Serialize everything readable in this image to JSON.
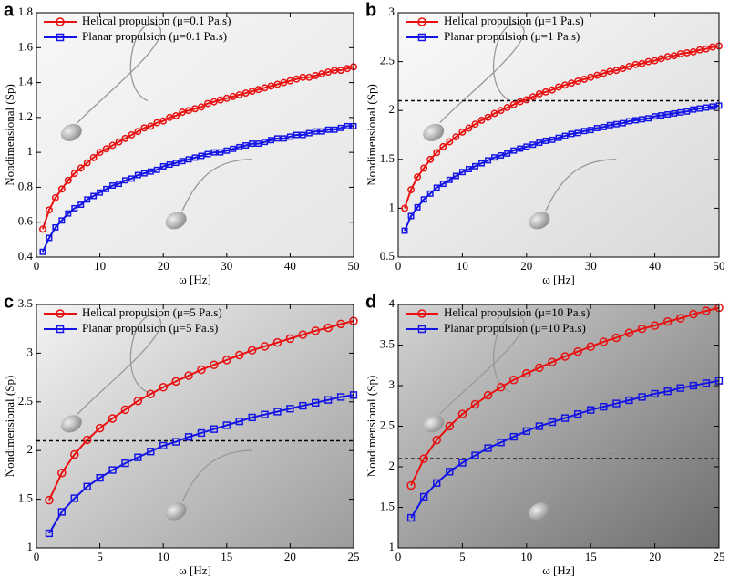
{
  "chart_data": [
    {
      "type": "line",
      "label": "a",
      "x_label": "ω [Hz]",
      "y_label": "Nondimensional (Sp)",
      "x": [
        1,
        2,
        3,
        4,
        5,
        6,
        7,
        8,
        9,
        10,
        11,
        12,
        13,
        14,
        15,
        16,
        17,
        18,
        19,
        20,
        21,
        22,
        23,
        24,
        25,
        26,
        27,
        28,
        29,
        30,
        31,
        32,
        33,
        34,
        35,
        36,
        37,
        38,
        39,
        40,
        41,
        42,
        43,
        44,
        45,
        46,
        47,
        48,
        49,
        50
      ],
      "xlim": [
        0,
        50
      ],
      "xticks": [
        0,
        10,
        20,
        30,
        40,
        50
      ],
      "ylim": [
        0.4,
        1.8
      ],
      "yticks": [
        0.4,
        0.6,
        0.8,
        1,
        1.2,
        1.4,
        1.6,
        1.8
      ],
      "series": [
        {
          "name": "Helical propulsion (μ=0.1 Pa.s)",
          "color": "#e81010",
          "marker": "circle",
          "values": [
            0.56,
            0.67,
            0.74,
            0.79,
            0.84,
            0.88,
            0.91,
            0.94,
            0.97,
            1.0,
            1.02,
            1.04,
            1.06,
            1.08,
            1.1,
            1.12,
            1.14,
            1.15,
            1.17,
            1.18,
            1.2,
            1.21,
            1.23,
            1.24,
            1.25,
            1.26,
            1.28,
            1.29,
            1.3,
            1.31,
            1.32,
            1.33,
            1.34,
            1.35,
            1.36,
            1.37,
            1.38,
            1.39,
            1.4,
            1.41,
            1.42,
            1.43,
            1.43,
            1.44,
            1.45,
            1.46,
            1.47,
            1.47,
            1.48,
            1.49
          ]
        },
        {
          "name": "Planar propulsion (μ=0.1 Pa.s)",
          "color": "#1414e6",
          "marker": "square",
          "values": [
            0.43,
            0.51,
            0.57,
            0.61,
            0.65,
            0.68,
            0.7,
            0.73,
            0.75,
            0.77,
            0.79,
            0.81,
            0.82,
            0.84,
            0.85,
            0.87,
            0.88,
            0.89,
            0.9,
            0.92,
            0.93,
            0.94,
            0.95,
            0.96,
            0.97,
            0.98,
            0.99,
            1.0,
            1.0,
            1.01,
            1.02,
            1.03,
            1.04,
            1.05,
            1.05,
            1.06,
            1.07,
            1.08,
            1.08,
            1.09,
            1.1,
            1.1,
            1.11,
            1.12,
            1.12,
            1.13,
            1.13,
            1.14,
            1.15,
            1.15
          ]
        }
      ]
    },
    {
      "type": "line",
      "label": "b",
      "x_label": "ω [Hz]",
      "y_label": "Nondimensional (Sp)",
      "x": [
        1,
        2,
        3,
        4,
        5,
        6,
        7,
        8,
        9,
        10,
        11,
        12,
        13,
        14,
        15,
        16,
        17,
        18,
        19,
        20,
        21,
        22,
        23,
        24,
        25,
        26,
        27,
        28,
        29,
        30,
        31,
        32,
        33,
        34,
        35,
        36,
        37,
        38,
        39,
        40,
        41,
        42,
        43,
        44,
        45,
        46,
        47,
        48,
        49,
        50
      ],
      "xlim": [
        0,
        50
      ],
      "xticks": [
        0,
        10,
        20,
        30,
        40,
        50
      ],
      "ylim": [
        0.5,
        3
      ],
      "yticks": [
        0.5,
        1,
        1.5,
        2,
        2.5,
        3
      ],
      "hline": 2.1,
      "series": [
        {
          "name": "Helical propulsion (μ=1 Pa.s)",
          "color": "#e81010",
          "marker": "circle",
          "values": [
            1.0,
            1.19,
            1.32,
            1.41,
            1.5,
            1.57,
            1.63,
            1.68,
            1.73,
            1.78,
            1.82,
            1.86,
            1.9,
            1.93,
            1.97,
            2.0,
            2.03,
            2.06,
            2.09,
            2.11,
            2.14,
            2.17,
            2.19,
            2.21,
            2.24,
            2.26,
            2.28,
            2.3,
            2.32,
            2.34,
            2.36,
            2.38,
            2.4,
            2.41,
            2.43,
            2.45,
            2.47,
            2.48,
            2.5,
            2.51,
            2.53,
            2.55,
            2.56,
            2.58,
            2.59,
            2.6,
            2.62,
            2.63,
            2.65,
            2.66
          ]
        },
        {
          "name": "Planar propulsion (μ=1 Pa.s)",
          "color": "#1414e6",
          "marker": "square",
          "values": [
            0.77,
            0.92,
            1.01,
            1.09,
            1.15,
            1.21,
            1.25,
            1.29,
            1.33,
            1.37,
            1.4,
            1.43,
            1.46,
            1.49,
            1.52,
            1.54,
            1.56,
            1.59,
            1.61,
            1.63,
            1.65,
            1.67,
            1.69,
            1.7,
            1.72,
            1.74,
            1.76,
            1.77,
            1.79,
            1.8,
            1.82,
            1.83,
            1.85,
            1.86,
            1.87,
            1.89,
            1.9,
            1.91,
            1.92,
            1.94,
            1.95,
            1.96,
            1.97,
            1.98,
            1.99,
            2.01,
            2.02,
            2.03,
            2.04,
            2.05
          ]
        }
      ]
    },
    {
      "type": "line",
      "label": "c",
      "x_label": "ω [Hz]",
      "y_label": "Nondimensional (Sp)",
      "x": [
        1,
        2,
        3,
        4,
        5,
        6,
        7,
        8,
        9,
        10,
        11,
        12,
        13,
        14,
        15,
        16,
        17,
        18,
        19,
        20,
        21,
        22,
        23,
        24,
        25
      ],
      "xlim": [
        0,
        25
      ],
      "xticks": [
        0,
        5,
        10,
        15,
        20,
        25
      ],
      "ylim": [
        1,
        3.5
      ],
      "yticks": [
        1,
        1.5,
        2,
        2.5,
        3,
        3.5
      ],
      "hline": 2.1,
      "series": [
        {
          "name": "Helical propulsion (μ=5 Pa.s)",
          "color": "#e81010",
          "marker": "circle",
          "values": [
            1.49,
            1.77,
            1.96,
            2.11,
            2.23,
            2.33,
            2.42,
            2.51,
            2.58,
            2.65,
            2.71,
            2.77,
            2.83,
            2.88,
            2.93,
            2.98,
            3.03,
            3.07,
            3.11,
            3.15,
            3.19,
            3.23,
            3.26,
            3.3,
            3.33
          ]
        },
        {
          "name": "Planar propulsion (μ=5 Pa.s)",
          "color": "#1414e6",
          "marker": "square",
          "values": [
            1.15,
            1.37,
            1.51,
            1.63,
            1.72,
            1.8,
            1.87,
            1.93,
            1.99,
            2.05,
            2.09,
            2.14,
            2.18,
            2.22,
            2.26,
            2.3,
            2.34,
            2.37,
            2.4,
            2.43,
            2.46,
            2.49,
            2.52,
            2.55,
            2.57
          ]
        }
      ]
    },
    {
      "type": "line",
      "label": "d",
      "x_label": "ω [Hz]",
      "y_label": "Nondimensional (Sp)",
      "x": [
        1,
        2,
        3,
        4,
        5,
        6,
        7,
        8,
        9,
        10,
        11,
        12,
        13,
        14,
        15,
        16,
        17,
        18,
        19,
        20,
        21,
        22,
        23,
        24,
        25
      ],
      "xlim": [
        0,
        25
      ],
      "xticks": [
        0,
        5,
        10,
        15,
        20,
        25
      ],
      "ylim": [
        1,
        4
      ],
      "yticks": [
        1,
        1.5,
        2,
        2.5,
        3,
        3.5,
        4
      ],
      "hline": 2.1,
      "series": [
        {
          "name": "Helical propulsion (μ=10 Pa.s)",
          "color": "#e81010",
          "marker": "circle",
          "values": [
            1.77,
            2.1,
            2.33,
            2.5,
            2.65,
            2.77,
            2.88,
            2.98,
            3.07,
            3.15,
            3.22,
            3.29,
            3.36,
            3.42,
            3.48,
            3.54,
            3.59,
            3.65,
            3.7,
            3.74,
            3.79,
            3.83,
            3.88,
            3.92,
            3.96
          ]
        },
        {
          "name": "Planar propulsion (μ=10 Pa.s)",
          "color": "#1414e6",
          "marker": "square",
          "values": [
            1.37,
            1.63,
            1.8,
            1.94,
            2.05,
            2.14,
            2.23,
            2.3,
            2.37,
            2.44,
            2.5,
            2.55,
            2.6,
            2.65,
            2.7,
            2.74,
            2.78,
            2.82,
            2.86,
            2.9,
            2.93,
            2.97,
            3.0,
            3.03,
            3.06
          ]
        }
      ]
    }
  ]
}
